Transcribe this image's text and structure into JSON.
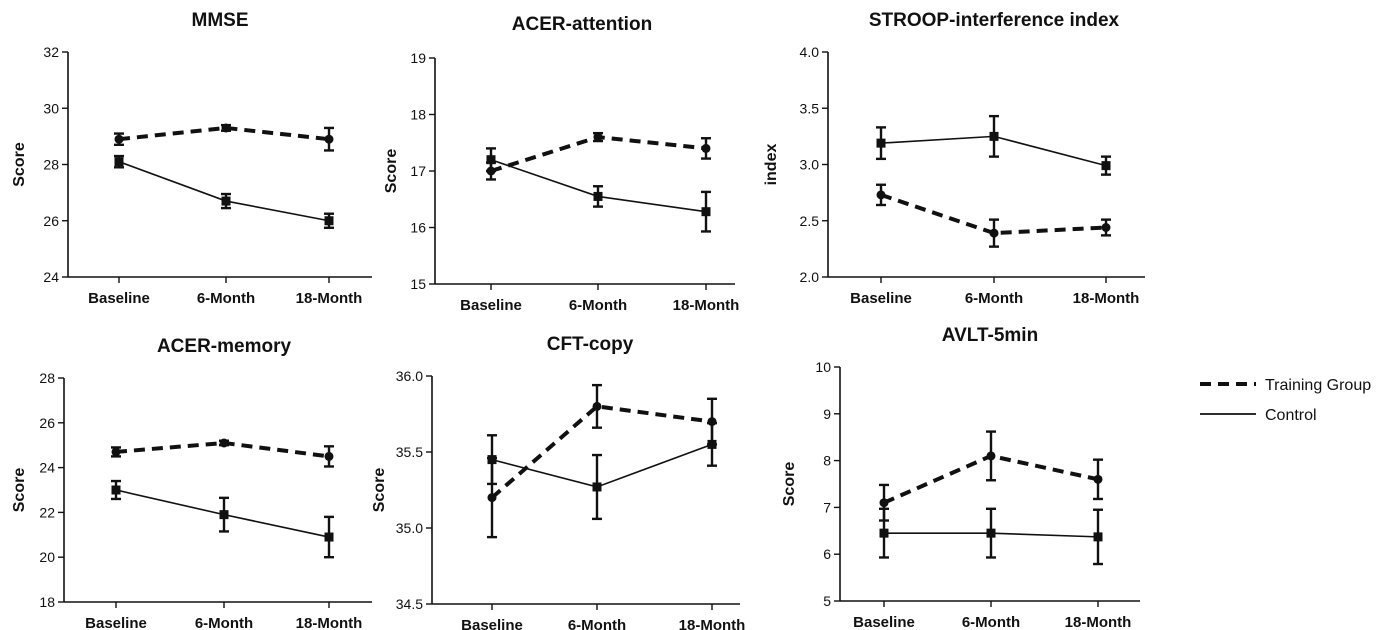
{
  "legend": {
    "training_label": "Training Group",
    "control_label": "Control"
  },
  "chart_data": [
    {
      "type": "line",
      "title": "MMSE",
      "xlabel": "",
      "ylabel": "Score",
      "categories": [
        "Baseline",
        "6-Month",
        "18-Month"
      ],
      "ylim": [
        24,
        32
      ],
      "yticks": [
        "24",
        "26",
        "28",
        "30",
        "32"
      ],
      "series": [
        {
          "name": "Training Group",
          "style": "dashed",
          "marker": "circle",
          "values": [
            28.9,
            29.3,
            28.9
          ],
          "errors": [
            0.2,
            0.1,
            0.4
          ]
        },
        {
          "name": "Control",
          "style": "solid",
          "marker": "square",
          "values": [
            28.1,
            26.7,
            26.0
          ],
          "errors": [
            0.2,
            0.25,
            0.25
          ]
        }
      ]
    },
    {
      "type": "line",
      "title": "ACER-attention",
      "xlabel": "",
      "ylabel": "Score",
      "categories": [
        "Baseline",
        "6-Month",
        "18-Month"
      ],
      "ylim": [
        15,
        19
      ],
      "yticks": [
        "15",
        "16",
        "17",
        "18",
        "19"
      ],
      "series": [
        {
          "name": "Training Group",
          "style": "dashed",
          "marker": "circle",
          "values": [
            17.0,
            17.6,
            17.4
          ],
          "errors": [
            0.15,
            0.07,
            0.18
          ]
        },
        {
          "name": "Control",
          "style": "solid",
          "marker": "square",
          "values": [
            17.2,
            16.55,
            16.28
          ],
          "errors": [
            0.2,
            0.18,
            0.35
          ]
        }
      ]
    },
    {
      "type": "line",
      "title": "STROOP-interference index",
      "xlabel": "",
      "ylabel": "index",
      "categories": [
        "Baseline",
        "6-Month",
        "18-Month"
      ],
      "ylim": [
        2.0,
        4.0
      ],
      "yticks": [
        "2.0",
        "2.5",
        "3.0",
        "3.5",
        "4.0"
      ],
      "series": [
        {
          "name": "Training Group",
          "style": "dashed",
          "marker": "circle",
          "values": [
            2.73,
            2.39,
            2.44
          ],
          "errors": [
            0.09,
            0.12,
            0.07
          ]
        },
        {
          "name": "Control",
          "style": "solid",
          "marker": "square",
          "values": [
            3.19,
            3.25,
            2.99
          ],
          "errors": [
            0.14,
            0.18,
            0.08
          ]
        }
      ]
    },
    {
      "type": "line",
      "title": "ACER-memory",
      "xlabel": "",
      "ylabel": "Score",
      "categories": [
        "Baseline",
        "6-Month",
        "18-Month"
      ],
      "ylim": [
        18,
        28
      ],
      "yticks": [
        "18",
        "20",
        "22",
        "24",
        "26",
        "28"
      ],
      "series": [
        {
          "name": "Training Group",
          "style": "dashed",
          "marker": "circle",
          "values": [
            24.7,
            25.1,
            24.5
          ],
          "errors": [
            0.2,
            0.1,
            0.45
          ]
        },
        {
          "name": "Control",
          "style": "solid",
          "marker": "square",
          "values": [
            23.0,
            21.9,
            20.9
          ],
          "errors": [
            0.4,
            0.75,
            0.9
          ]
        }
      ]
    },
    {
      "type": "line",
      "title": "CFT-copy",
      "xlabel": "",
      "ylabel": "Score",
      "categories": [
        "Baseline",
        "6-Month",
        "18-Month"
      ],
      "ylim": [
        34.5,
        36.0
      ],
      "yticks": [
        "34.5",
        "35.0",
        "35.5",
        "36.0"
      ],
      "series": [
        {
          "name": "Training Group",
          "style": "dashed",
          "marker": "circle",
          "values": [
            35.2,
            35.8,
            35.7
          ],
          "errors": [
            0.26,
            0.14,
            0.15
          ]
        },
        {
          "name": "Control",
          "style": "solid",
          "marker": "square",
          "values": [
            35.45,
            35.27,
            35.55
          ],
          "errors": [
            0.16,
            0.21,
            0.14
          ]
        }
      ]
    },
    {
      "type": "line",
      "title": "AVLT-5min",
      "xlabel": "",
      "ylabel": "Score",
      "categories": [
        "Baseline",
        "6-Month",
        "18-Month"
      ],
      "ylim": [
        5,
        10
      ],
      "yticks": [
        "5",
        "6",
        "7",
        "8",
        "9",
        "10"
      ],
      "series": [
        {
          "name": "Training Group",
          "style": "dashed",
          "marker": "circle",
          "values": [
            7.1,
            8.1,
            7.6
          ],
          "errors": [
            0.38,
            0.52,
            0.42
          ]
        },
        {
          "name": "Control",
          "style": "solid",
          "marker": "square",
          "values": [
            6.45,
            6.45,
            6.37
          ],
          "errors": [
            0.52,
            0.52,
            0.58
          ]
        }
      ]
    }
  ]
}
